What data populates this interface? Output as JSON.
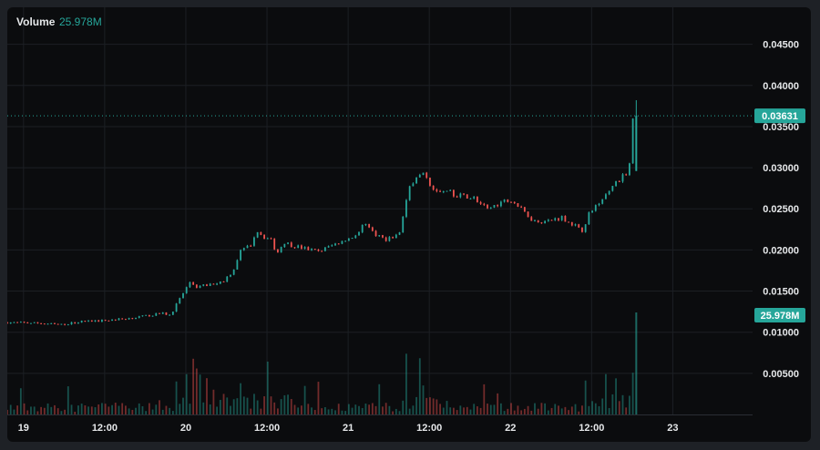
{
  "header": {
    "volume_label": "Volume",
    "volume_value": "25.978M"
  },
  "colors": {
    "up": "#26a69a",
    "down": "#ef5350",
    "price_tag": "#26a69a",
    "grid": "#1c1f24",
    "axis_text": "#e6e8ea",
    "background": "#0b0c0e"
  },
  "chart_data": {
    "type": "candlestick",
    "price_axis": {
      "ticks": [
        "0.04500",
        "0.04000",
        "0.03500",
        "0.03000",
        "0.02500",
        "0.02000",
        "0.01500",
        "0.01000",
        "0.00500"
      ],
      "tick_values": [
        0.045,
        0.04,
        0.035,
        0.03,
        0.025,
        0.02,
        0.015,
        0.01,
        0.005
      ],
      "ylim": [
        0.0,
        0.0495
      ]
    },
    "time_axis": {
      "ticks": [
        "19",
        "12:00",
        "20",
        "12:00",
        "21",
        "12:00",
        "22",
        "12:00",
        "23"
      ],
      "tick_hours": [
        0,
        12,
        24,
        36,
        48,
        60,
        72,
        84,
        96
      ],
      "xlim_hours": [
        -2.4,
        107.8
      ]
    },
    "last_price": {
      "value": 0.03631,
      "label": "0.03631"
    },
    "last_volume": {
      "value": 25978000,
      "label": "25.978M"
    },
    "price_path": [
      [
        -2.4,
        0.0112
      ],
      [
        3,
        0.0111
      ],
      [
        6,
        0.0109
      ],
      [
        9,
        0.0113
      ],
      [
        12,
        0.0114
      ],
      [
        15,
        0.0116
      ],
      [
        18,
        0.0119
      ],
      [
        21,
        0.0123
      ],
      [
        22.2,
        0.0121
      ],
      [
        24.5,
        0.0153
      ],
      [
        25.2,
        0.0162
      ],
      [
        26,
        0.0155
      ],
      [
        28,
        0.0158
      ],
      [
        30,
        0.0162
      ],
      [
        31.5,
        0.0175
      ],
      [
        32.5,
        0.0198
      ],
      [
        34,
        0.0205
      ],
      [
        35,
        0.0224
      ],
      [
        36,
        0.0216
      ],
      [
        37,
        0.0213
      ],
      [
        38,
        0.0196
      ],
      [
        39,
        0.021
      ],
      [
        40,
        0.0206
      ],
      [
        42,
        0.0202
      ],
      [
        44,
        0.0198
      ],
      [
        46,
        0.0205
      ],
      [
        48,
        0.0213
      ],
      [
        50,
        0.0218
      ],
      [
        51,
        0.0235
      ],
      [
        52,
        0.0222
      ],
      [
        54,
        0.0213
      ],
      [
        56,
        0.0218
      ],
      [
        57.5,
        0.0275
      ],
      [
        58.5,
        0.029
      ],
      [
        60,
        0.0291
      ],
      [
        61,
        0.0275
      ],
      [
        63,
        0.0271
      ],
      [
        65,
        0.0266
      ],
      [
        67,
        0.0264
      ],
      [
        69,
        0.0249
      ],
      [
        71,
        0.0258
      ],
      [
        72.5,
        0.0262
      ],
      [
        74,
        0.025
      ],
      [
        76,
        0.0235
      ],
      [
        78,
        0.0235
      ],
      [
        80,
        0.024
      ],
      [
        82,
        0.023
      ],
      [
        83,
        0.0222
      ],
      [
        84,
        0.0242
      ],
      [
        85.5,
        0.0258
      ],
      [
        87,
        0.0272
      ],
      [
        88,
        0.028
      ],
      [
        89,
        0.0288
      ],
      [
        90,
        0.0296
      ],
      [
        90.6,
        0.0363
      ]
    ],
    "final_candle": {
      "open": 0.0296,
      "high": 0.0382,
      "low": 0.0296,
      "close": 0.03631
    }
  }
}
